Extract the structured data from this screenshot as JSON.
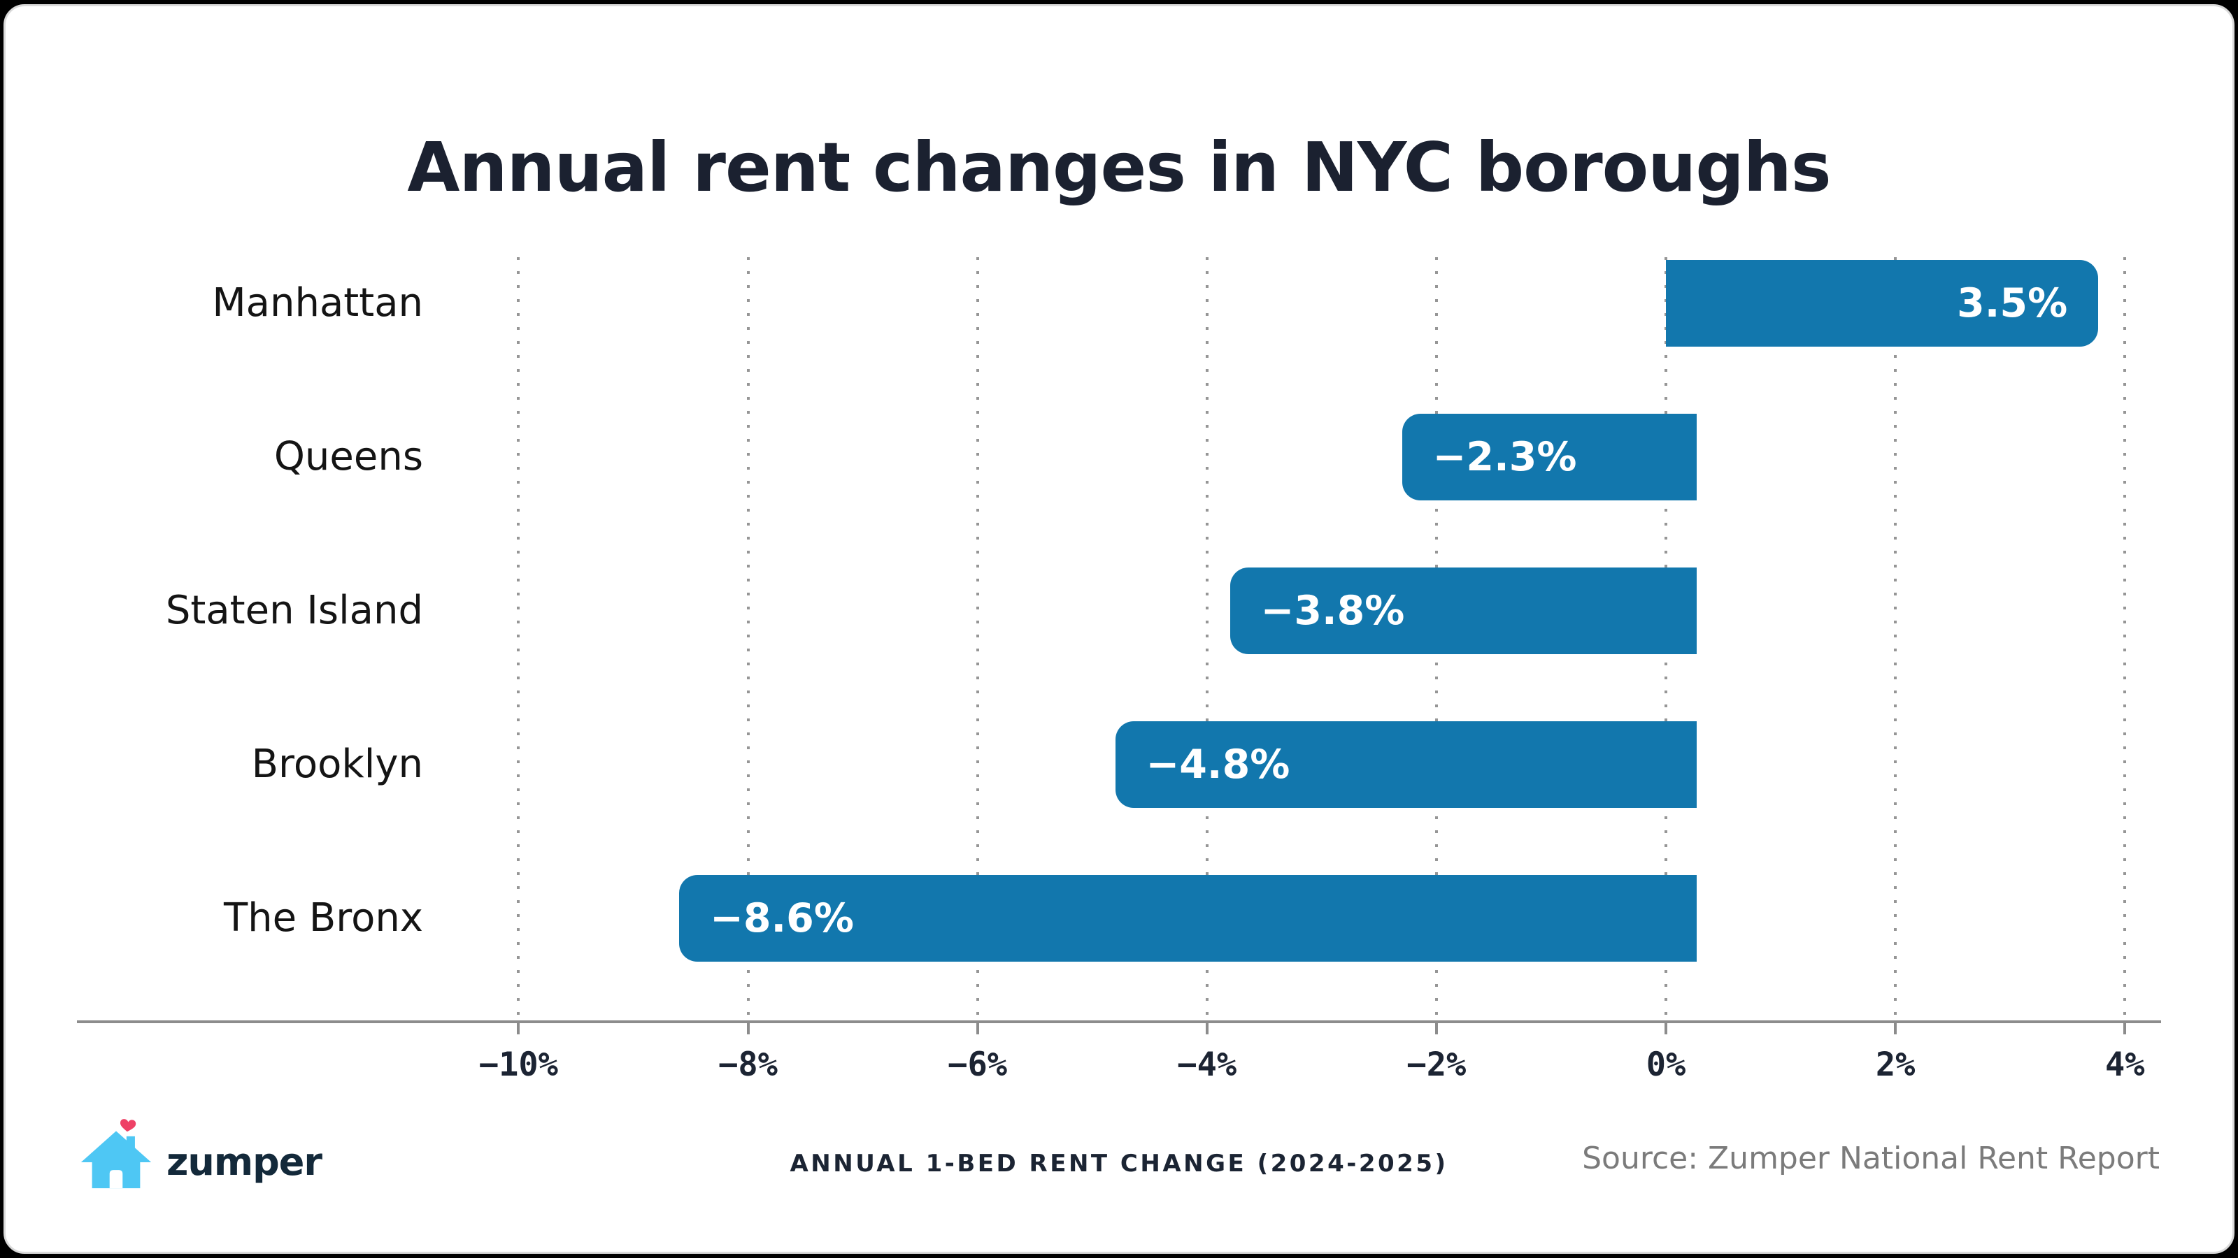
{
  "title": "Annual rent changes in NYC boroughs",
  "chart_data": {
    "type": "bar",
    "orientation": "horizontal",
    "title": "Annual rent changes in NYC boroughs",
    "categories": [
      "Manhattan",
      "Queens",
      "Staten Island",
      "Brooklyn",
      "The Bronx"
    ],
    "values": [
      3.5,
      -2.3,
      -3.8,
      -4.8,
      -8.6
    ],
    "value_labels": [
      "3.5%",
      "−2.3%",
      "−3.8%",
      "−4.8%",
      "−8.6%"
    ],
    "x_ticks": [
      {
        "value": -10,
        "label": "−10%"
      },
      {
        "value": -8,
        "label": "−8%"
      },
      {
        "value": -6,
        "label": "−6%"
      },
      {
        "value": -4,
        "label": "−4%"
      },
      {
        "value": -2,
        "label": "−2%"
      },
      {
        "value": 0,
        "label": "0%"
      },
      {
        "value": 2,
        "label": "2%"
      },
      {
        "value": 4,
        "label": "4%"
      }
    ],
    "xlim": [
      -10,
      4
    ],
    "grid": "vertical-dotted",
    "legend": "none",
    "bar_color": "#1277ad",
    "value_label_color": "#ffffff"
  },
  "footer": {
    "brand": "zumper",
    "caption": "ANNUAL 1-BED RENT CHANGE (2024-2025)",
    "source": "Source: Zumper National Rent Report"
  },
  "colors": {
    "background": "#000000",
    "card": "#ffffff",
    "bar": "#1277ad",
    "title_text": "#1b2130",
    "category_label": "#141414",
    "tick_label": "#1c2433",
    "axis_line": "#8c8c8c",
    "grid_dot": "#969696",
    "caption_text": "#1b2433",
    "source_text": "#7b7b7b",
    "logo_house": "#4ec7f4",
    "logo_heart": "#ee4166",
    "logo_wordmark": "#13293a"
  }
}
